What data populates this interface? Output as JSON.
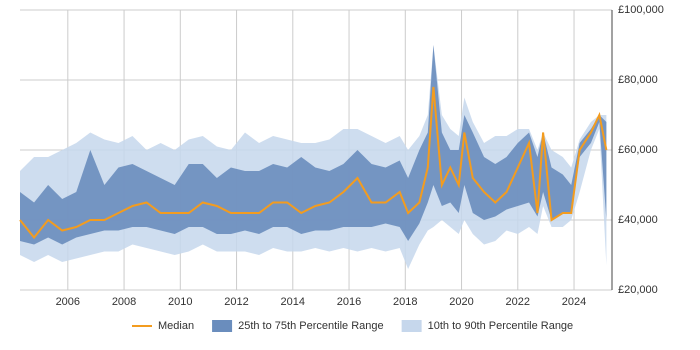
{
  "chart_data": {
    "type": "line",
    "x": [
      2004.3,
      2004.8,
      2005.3,
      2005.8,
      2006.3,
      2006.8,
      2007.3,
      2007.8,
      2008.3,
      2008.8,
      2009.3,
      2009.8,
      2010.3,
      2010.8,
      2011.3,
      2011.8,
      2012.3,
      2012.8,
      2013.3,
      2013.8,
      2014.3,
      2014.8,
      2015.3,
      2015.8,
      2016.3,
      2016.8,
      2017.3,
      2017.8,
      2018.1,
      2018.5,
      2018.8,
      2019.0,
      2019.3,
      2019.6,
      2019.9,
      2020.1,
      2020.4,
      2020.8,
      2021.2,
      2021.6,
      2022.0,
      2022.4,
      2022.7,
      2022.9,
      2023.2,
      2023.6,
      2023.9,
      2024.2,
      2024.6,
      2024.9,
      2025.15
    ],
    "bands": [
      {
        "name": "10th to 90th Percentile Range",
        "color": "#c6d7ec",
        "low": [
          30000,
          28000,
          30000,
          28000,
          29000,
          30000,
          31000,
          31000,
          33000,
          32000,
          31000,
          30000,
          31000,
          33000,
          31000,
          31000,
          31000,
          30000,
          32000,
          31000,
          31000,
          32000,
          31000,
          32000,
          31000,
          32000,
          31000,
          32000,
          26000,
          33000,
          37000,
          38000,
          40000,
          38000,
          36000,
          40000,
          36000,
          33000,
          34000,
          37000,
          36000,
          38000,
          36000,
          44000,
          38000,
          38000,
          40000,
          48000,
          60000,
          66000,
          27000
        ],
        "high": [
          54000,
          58000,
          58000,
          60000,
          62000,
          65000,
          63000,
          62000,
          64000,
          60000,
          62000,
          60000,
          63000,
          64000,
          61000,
          60000,
          65000,
          62000,
          64000,
          63000,
          62000,
          62000,
          63000,
          66000,
          66000,
          64000,
          62000,
          64000,
          60000,
          64000,
          70000,
          90000,
          70000,
          66000,
          64000,
          75000,
          68000,
          62000,
          64000,
          64000,
          66000,
          66000,
          60000,
          65000,
          60000,
          58000,
          55000,
          63000,
          68000,
          70000,
          70000
        ]
      },
      {
        "name": "25th to 75th Percentile Range",
        "color": "#6a8dbd",
        "low": [
          34000,
          33000,
          35000,
          33000,
          35000,
          36000,
          37000,
          37000,
          38000,
          38000,
          37000,
          36000,
          38000,
          38000,
          36000,
          36000,
          37000,
          36000,
          38000,
          38000,
          36000,
          37000,
          37000,
          38000,
          38000,
          38000,
          39000,
          38000,
          34000,
          39000,
          45000,
          50000,
          44000,
          45000,
          42000,
          50000,
          42000,
          40000,
          41000,
          43000,
          44000,
          45000,
          41000,
          48000,
          40000,
          42000,
          42000,
          58000,
          62000,
          68000,
          40000
        ],
        "high": [
          48000,
          45000,
          50000,
          46000,
          48000,
          60000,
          50000,
          55000,
          56000,
          54000,
          52000,
          50000,
          56000,
          56000,
          52000,
          55000,
          54000,
          54000,
          56000,
          55000,
          58000,
          55000,
          54000,
          56000,
          60000,
          56000,
          55000,
          57000,
          52000,
          60000,
          65000,
          90000,
          65000,
          60000,
          60000,
          70000,
          65000,
          58000,
          56000,
          58000,
          62000,
          65000,
          58000,
          65000,
          55000,
          53000,
          50000,
          62000,
          66000,
          70000,
          68000
        ]
      }
    ],
    "series": [
      {
        "name": "Median",
        "color": "#f39c1f",
        "values": [
          40000,
          35000,
          40000,
          37000,
          38000,
          40000,
          40000,
          42000,
          44000,
          45000,
          42000,
          42000,
          42000,
          45000,
          44000,
          42000,
          42000,
          42000,
          45000,
          45000,
          42000,
          44000,
          45000,
          48000,
          52000,
          45000,
          45000,
          48000,
          42000,
          45000,
          55000,
          78000,
          50000,
          55000,
          50000,
          65000,
          52000,
          48000,
          45000,
          48000,
          55000,
          62000,
          42000,
          65000,
          40000,
          42000,
          42000,
          60000,
          65000,
          70000,
          60000
        ]
      }
    ],
    "xlim": [
      2004.3,
      2025.35
    ],
    "xticks": [
      2006,
      2008,
      2010,
      2012,
      2014,
      2016,
      2018,
      2020,
      2022,
      2024
    ],
    "ylim": [
      20000,
      100000
    ],
    "yticks": [
      {
        "value": 20000,
        "label": "£20,000"
      },
      {
        "value": 40000,
        "label": "£40,000"
      },
      {
        "value": 60000,
        "label": "£60,000"
      },
      {
        "value": 80000,
        "label": "£80,000"
      },
      {
        "value": 100000,
        "label": "£100,000"
      }
    ],
    "grid": true,
    "legend": "bottom"
  }
}
